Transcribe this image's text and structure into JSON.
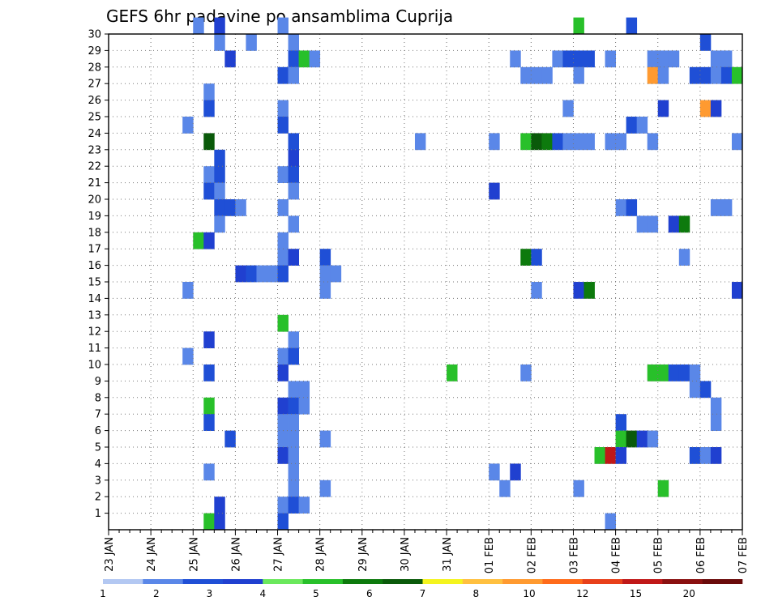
{
  "chart_data": {
    "type": "heatmap",
    "title": "GEFS 6hr padavine po ansamblima Cuprija",
    "xlabel": "",
    "ylabel": "",
    "x_tick_labels": [
      "23 JAN",
      "24 JAN",
      "25 JAN",
      "26 JAN",
      "27 JAN",
      "28 JAN",
      "29 JAN",
      "30 JAN",
      "31 JAN",
      "01 FEB",
      "02 FEB",
      "03 FEB",
      "04 FEB",
      "05 FEB",
      "06 FEB",
      "07 FEB"
    ],
    "xlim_steps": [
      0,
      60
    ],
    "steps_per_day": 4,
    "y_tick_labels": [
      "1",
      "2",
      "3",
      "4",
      "5",
      "6",
      "7",
      "8",
      "9",
      "10",
      "11",
      "12",
      "13",
      "14",
      "15",
      "16",
      "17",
      "18",
      "19",
      "20",
      "21",
      "22",
      "23",
      "24",
      "25",
      "26",
      "27",
      "28",
      "29",
      "30"
    ],
    "ylim": [
      0,
      30
    ],
    "grid": true,
    "legend": {
      "position": "bottom",
      "colors": [
        "#b3c8f2",
        "#5a87e8",
        "#1f4fd6",
        "#2040d0",
        "#6be85c",
        "#28c02a",
        "#0d7a0d",
        "#0a5a0a",
        "#f4f41e",
        "#ffc040",
        "#ff9a30",
        "#ff6b1a",
        "#e8401a",
        "#c01818",
        "#8a1010",
        "#6a0a0a"
      ],
      "labels": [
        {
          "text": "1",
          "pos": 0
        },
        {
          "text": "2",
          "pos": 1
        },
        {
          "text": "3",
          "pos": 2
        },
        {
          "text": "4",
          "pos": 3
        },
        {
          "text": "5",
          "pos": 4
        },
        {
          "text": "6",
          "pos": 5
        },
        {
          "text": "7",
          "pos": 6
        },
        {
          "text": "8",
          "pos": 7
        },
        {
          "text": "10",
          "pos": 8
        },
        {
          "text": "12",
          "pos": 9
        },
        {
          "text": "15",
          "pos": 10
        },
        {
          "text": "20",
          "pos": 11
        }
      ]
    },
    "cells": [
      [
        8,
        30,
        1
      ],
      [
        10,
        30,
        3
      ],
      [
        16,
        30,
        1
      ],
      [
        44,
        30,
        5
      ],
      [
        49,
        30,
        2
      ],
      [
        10,
        29,
        1
      ],
      [
        13,
        29,
        1
      ],
      [
        17,
        29,
        1
      ],
      [
        56,
        29,
        2
      ],
      [
        11,
        28,
        3
      ],
      [
        17,
        28,
        2
      ],
      [
        18,
        28,
        5
      ],
      [
        19,
        28,
        1
      ],
      [
        38,
        28,
        1
      ],
      [
        42,
        28,
        1
      ],
      [
        43,
        28,
        2
      ],
      [
        44,
        28,
        2
      ],
      [
        45,
        28,
        2
      ],
      [
        47,
        28,
        1
      ],
      [
        51,
        28,
        1
      ],
      [
        52,
        28,
        1
      ],
      [
        53,
        28,
        1
      ],
      [
        57,
        28,
        1
      ],
      [
        58,
        28,
        1
      ],
      [
        16,
        27,
        2
      ],
      [
        17,
        27,
        1
      ],
      [
        39,
        27,
        1
      ],
      [
        40,
        27,
        1
      ],
      [
        41,
        27,
        1
      ],
      [
        44,
        27,
        1
      ],
      [
        51,
        27,
        10
      ],
      [
        52,
        27,
        1
      ],
      [
        55,
        27,
        2
      ],
      [
        56,
        27,
        2
      ],
      [
        57,
        27,
        1
      ],
      [
        58,
        27,
        2
      ],
      [
        59,
        27,
        5
      ],
      [
        9,
        26,
        1
      ],
      [
        9,
        25,
        2
      ],
      [
        16,
        25,
        1
      ],
      [
        43,
        25,
        1
      ],
      [
        52,
        25,
        3
      ],
      [
        56,
        25,
        10
      ],
      [
        57,
        25,
        3
      ],
      [
        7,
        24,
        1
      ],
      [
        16,
        24,
        2
      ],
      [
        49,
        24,
        2
      ],
      [
        50,
        24,
        1
      ],
      [
        9,
        23,
        7
      ],
      [
        17,
        23,
        2
      ],
      [
        29,
        23,
        1
      ],
      [
        36,
        23,
        1
      ],
      [
        39,
        23,
        5
      ],
      [
        40,
        23,
        7
      ],
      [
        41,
        23,
        6
      ],
      [
        42,
        23,
        2
      ],
      [
        43,
        23,
        1
      ],
      [
        44,
        23,
        1
      ],
      [
        45,
        23,
        1
      ],
      [
        47,
        23,
        1
      ],
      [
        48,
        23,
        1
      ],
      [
        51,
        23,
        1
      ],
      [
        59,
        23,
        1
      ],
      [
        10,
        22,
        2
      ],
      [
        17,
        22,
        3
      ],
      [
        9,
        21,
        1
      ],
      [
        10,
        21,
        2
      ],
      [
        16,
        21,
        1
      ],
      [
        17,
        21,
        2
      ],
      [
        9,
        20,
        2
      ],
      [
        10,
        20,
        1
      ],
      [
        17,
        20,
        1
      ],
      [
        36,
        20,
        3
      ],
      [
        10,
        19,
        2
      ],
      [
        11,
        19,
        2
      ],
      [
        12,
        19,
        1
      ],
      [
        16,
        19,
        1
      ],
      [
        48,
        19,
        1
      ],
      [
        49,
        19,
        2
      ],
      [
        57,
        19,
        1
      ],
      [
        58,
        19,
        1
      ],
      [
        10,
        18,
        1
      ],
      [
        17,
        18,
        1
      ],
      [
        50,
        18,
        1
      ],
      [
        51,
        18,
        1
      ],
      [
        53,
        18,
        3
      ],
      [
        54,
        18,
        6
      ],
      [
        8,
        17,
        5
      ],
      [
        9,
        17,
        3
      ],
      [
        16,
        17,
        1
      ],
      [
        16,
        16,
        1
      ],
      [
        17,
        16,
        3
      ],
      [
        20,
        16,
        2
      ],
      [
        39,
        16,
        6
      ],
      [
        40,
        16,
        2
      ],
      [
        54,
        16,
        1
      ],
      [
        12,
        15,
        3
      ],
      [
        13,
        15,
        2
      ],
      [
        14,
        15,
        1
      ],
      [
        15,
        15,
        1
      ],
      [
        16,
        15,
        2
      ],
      [
        20,
        15,
        1
      ],
      [
        21,
        15,
        1
      ],
      [
        7,
        14,
        1
      ],
      [
        20,
        14,
        1
      ],
      [
        40,
        14,
        1
      ],
      [
        44,
        14,
        3
      ],
      [
        45,
        14,
        6
      ],
      [
        59,
        14,
        3
      ],
      [
        16,
        12,
        5
      ],
      [
        9,
        11,
        3
      ],
      [
        17,
        11,
        1
      ],
      [
        7,
        10,
        1
      ],
      [
        16,
        10,
        1
      ],
      [
        17,
        10,
        2
      ],
      [
        9,
        9,
        2
      ],
      [
        16,
        9,
        3
      ],
      [
        32,
        9,
        5
      ],
      [
        39,
        9,
        1
      ],
      [
        51,
        9,
        5
      ],
      [
        52,
        9,
        5
      ],
      [
        53,
        9,
        2
      ],
      [
        54,
        9,
        2
      ],
      [
        55,
        9,
        1
      ],
      [
        17,
        8,
        1
      ],
      [
        18,
        8,
        1
      ],
      [
        55,
        8,
        1
      ],
      [
        56,
        8,
        2
      ],
      [
        9,
        7,
        5
      ],
      [
        16,
        7,
        3
      ],
      [
        17,
        7,
        2
      ],
      [
        18,
        7,
        1
      ],
      [
        57,
        7,
        1
      ],
      [
        9,
        6,
        2
      ],
      [
        16,
        6,
        1
      ],
      [
        17,
        6,
        1
      ],
      [
        48,
        6,
        2
      ],
      [
        57,
        6,
        1
      ],
      [
        11,
        5,
        2
      ],
      [
        16,
        5,
        1
      ],
      [
        17,
        5,
        1
      ],
      [
        20,
        5,
        1
      ],
      [
        48,
        5,
        5
      ],
      [
        49,
        5,
        7
      ],
      [
        50,
        5,
        3
      ],
      [
        51,
        5,
        1
      ],
      [
        16,
        4,
        3
      ],
      [
        17,
        4,
        1
      ],
      [
        46,
        4,
        5
      ],
      [
        47,
        4,
        13
      ],
      [
        48,
        4,
        3
      ],
      [
        55,
        4,
        2
      ],
      [
        56,
        4,
        1
      ],
      [
        57,
        4,
        3
      ],
      [
        9,
        3,
        1
      ],
      [
        17,
        3,
        1
      ],
      [
        36,
        3,
        1
      ],
      [
        38,
        3,
        3
      ],
      [
        17,
        2,
        1
      ],
      [
        20,
        2,
        1
      ],
      [
        37,
        2,
        1
      ],
      [
        44,
        2,
        1
      ],
      [
        52,
        2,
        5
      ],
      [
        10,
        1,
        3
      ],
      [
        16,
        1,
        1
      ],
      [
        17,
        1,
        2
      ],
      [
        18,
        1,
        1
      ],
      [
        9,
        0,
        5
      ],
      [
        10,
        0,
        3
      ],
      [
        16,
        0,
        2
      ],
      [
        47,
        0,
        1
      ]
    ]
  }
}
